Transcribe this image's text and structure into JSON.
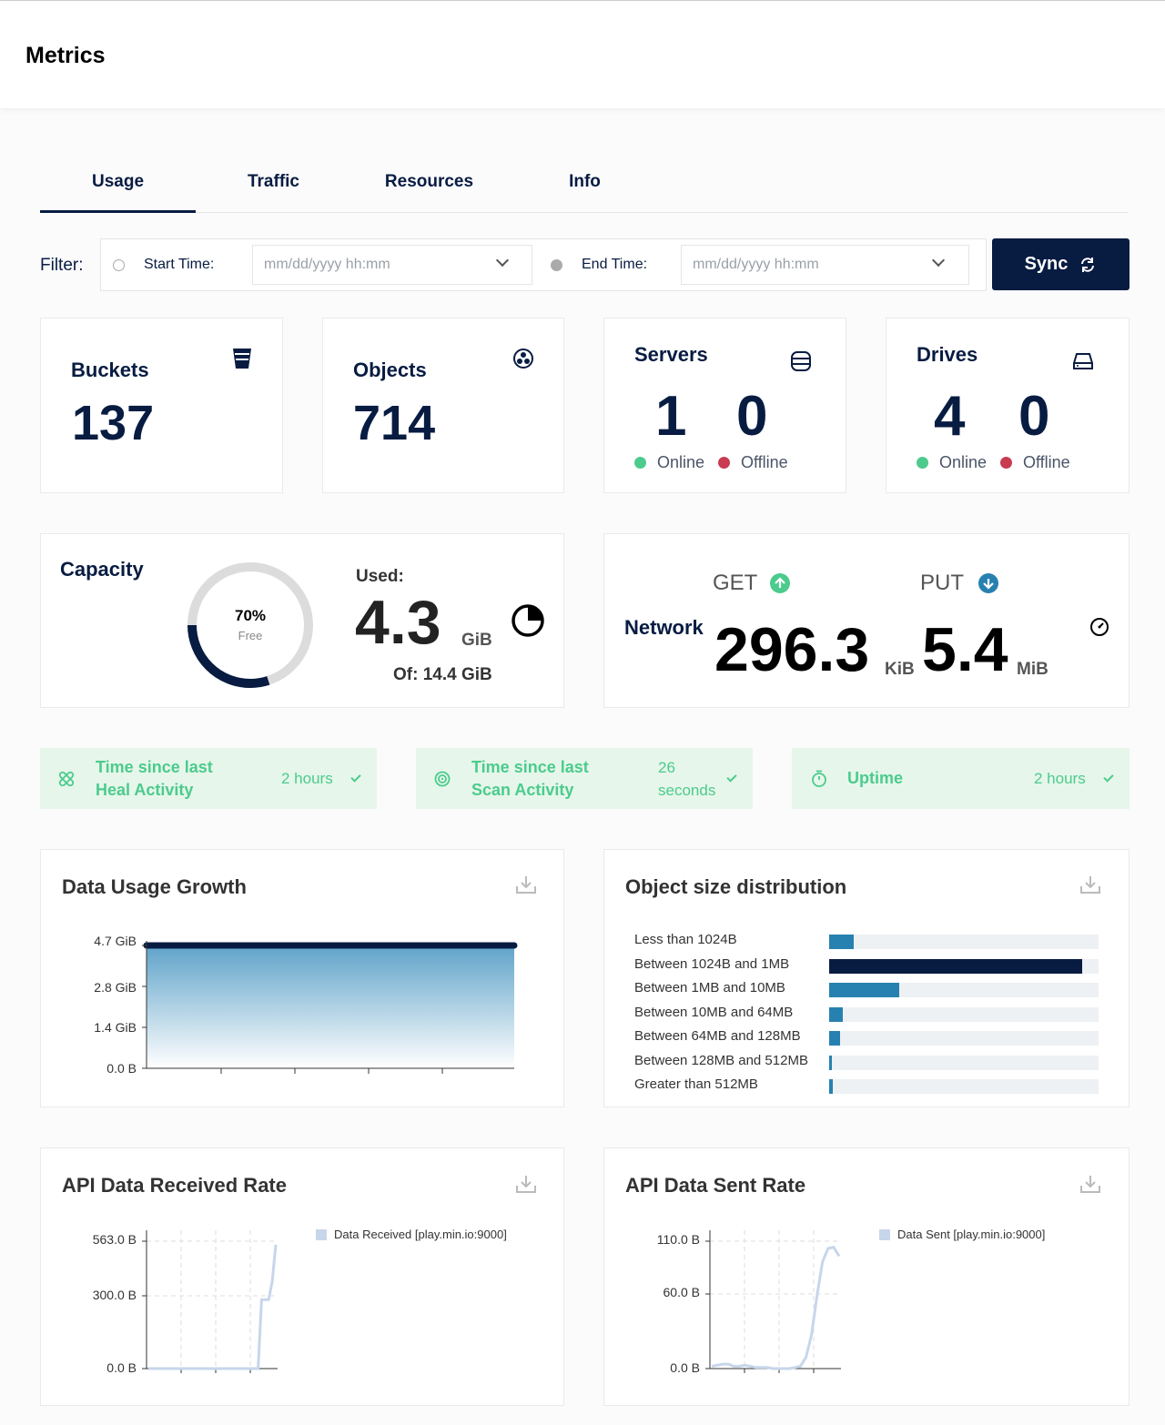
{
  "header": {
    "title": "Metrics"
  },
  "tabs": [
    {
      "label": "Usage",
      "active": true
    },
    {
      "label": "Traffic"
    },
    {
      "label": "Resources"
    },
    {
      "label": "Info"
    }
  ],
  "filter": {
    "label": "Filter:",
    "start_label": "Start Time:",
    "start_placeholder": "mm/dd/yyyy hh:mm",
    "end_label": "End Time:",
    "end_placeholder": "mm/dd/yyyy hh:mm",
    "sync_label": "Sync"
  },
  "buckets": {
    "title": "Buckets",
    "value": "137",
    "icon": "bucket-icon"
  },
  "objects": {
    "title": "Objects",
    "value": "714",
    "icon": "objects-icon"
  },
  "servers": {
    "title": "Servers",
    "online": "1",
    "offline": "0",
    "online_label": "Online",
    "offline_label": "Offline",
    "icon": "server-icon"
  },
  "drives": {
    "title": "Drives",
    "online": "4",
    "offline": "0",
    "online_label": "Online",
    "offline_label": "Offline",
    "icon": "drive-icon"
  },
  "capacity": {
    "title": "Capacity",
    "free_pct_label": "70%",
    "free_label": "Free",
    "used_fraction": 0.3,
    "used_label": "Used:",
    "used_value": "4.3",
    "used_unit": "GiB",
    "of_label": "Of: 14.4 GiB"
  },
  "network": {
    "title": "Network",
    "get_label": "GET",
    "put_label": "PUT",
    "get_value": "296.3",
    "get_unit": "KiB",
    "put_value": "5.4",
    "put_unit": "MiB"
  },
  "status": {
    "heal_title": "Time since last Heal Activity",
    "heal_value": "2 hours",
    "scan_title": "Time since last Scan Activity",
    "scan_value": "26 seconds",
    "uptime_title": "Uptime",
    "uptime_value": "2 hours"
  },
  "colors": {
    "primary": "#081c42",
    "green": "#4ccb8d",
    "red": "#c83b51",
    "blue": "#2781b0",
    "strip_bg": "#e6f6ea"
  },
  "chart_data": [
    {
      "type": "area",
      "title": "Data Usage Growth",
      "y_ticks": [
        "4.7 GiB",
        "2.8 GiB",
        "1.4 GiB",
        "0.0 B"
      ],
      "series": [
        {
          "values": [
            4.7,
            4.7,
            4.7,
            4.7,
            4.7,
            4.7
          ]
        }
      ]
    },
    {
      "type": "bar",
      "title": "Object size distribution",
      "categories": [
        "Less than 1024B",
        "Between 1024B and 1MB",
        "Between 1MB and 10MB",
        "Between 10MB and 64MB",
        "Between 64MB and 128MB",
        "Between 128MB and 512MB",
        "Greater than 512MB"
      ],
      "values": [
        9,
        94,
        26,
        5,
        4,
        1,
        1.5
      ],
      "highlight_index": 1
    },
    {
      "type": "line",
      "title": "API Data Received Rate",
      "y_ticks": [
        "563.0 B",
        "300.0 B",
        "0.0 B"
      ],
      "ylim": [
        0,
        563
      ],
      "series": [
        {
          "name": "Data Received [play.min.io:9000]",
          "values": [
            0,
            0,
            0,
            0,
            0,
            0,
            0,
            0,
            0,
            0,
            0,
            0,
            0,
            0,
            0,
            0,
            0,
            0,
            0,
            0,
            0,
            0,
            0,
            0,
            0,
            0,
            0,
            0,
            0,
            0,
            0,
            0,
            300,
            300,
            300,
            380,
            540
          ]
        }
      ]
    },
    {
      "type": "line",
      "title": "API Data Sent Rate",
      "y_ticks": [
        "110.0 B",
        "60.0 B",
        "0.0 B"
      ],
      "ylim": [
        0,
        115
      ],
      "series": [
        {
          "name": "Data Sent [play.min.io:9000]",
          "values": [
            2,
            3,
            4,
            4,
            2,
            2,
            3,
            2,
            1,
            1,
            1,
            0,
            0,
            0,
            0,
            1,
            2,
            10,
            30,
            65,
            95,
            107,
            108,
            100
          ]
        }
      ]
    }
  ]
}
